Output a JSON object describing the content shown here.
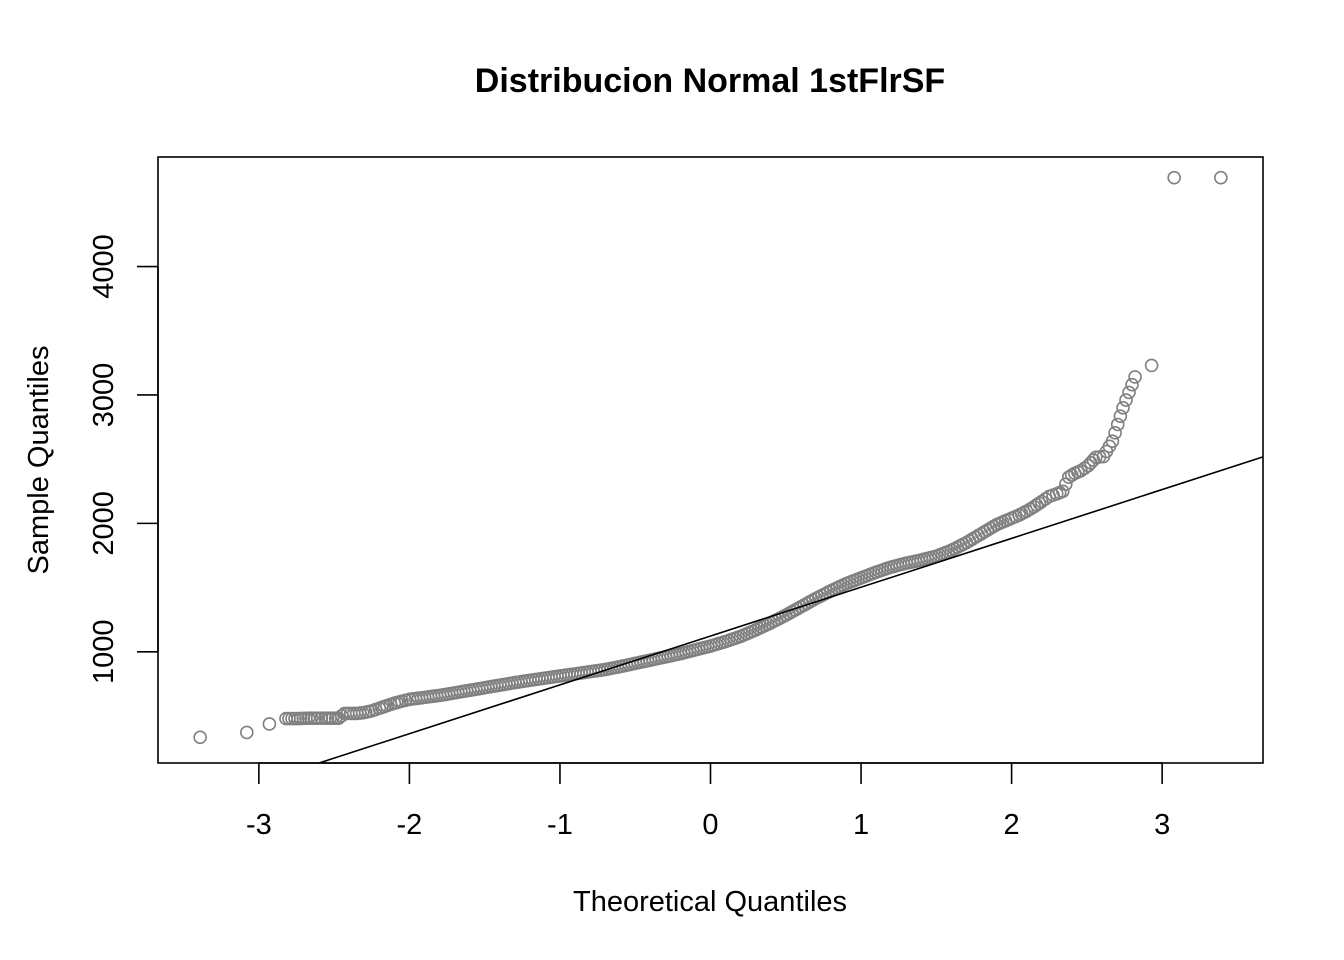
{
  "chart_data": {
    "type": "scatter",
    "title": "Distribucion Normal 1stFlrSF",
    "xlabel": "Theoretical Quantiles",
    "ylabel": "Sample Quantiles",
    "xlim": [
      -3.67,
      3.67
    ],
    "ylim": [
      134,
      4853
    ],
    "x_ticks": [
      -3,
      -2,
      -1,
      0,
      1,
      2,
      3
    ],
    "x_tick_labels": [
      "-3",
      "-2",
      "-1",
      "0",
      "1",
      "2",
      "3"
    ],
    "y_ticks": [
      1000,
      2000,
      3000,
      4000
    ],
    "y_tick_labels": [
      "1000",
      "2000",
      "3000",
      "4000"
    ],
    "grid": false,
    "legend": "none",
    "point_color": "#808080",
    "line_color": "#000000",
    "reference_line": {
      "x": [
        -2.6,
        3.67
      ],
      "y": [
        134,
        2518
      ]
    },
    "series": [
      {
        "x": [
          -3.39,
          -3.08,
          -2.93,
          -2.82,
          -2.74,
          -2.67,
          -2.61,
          -2.56,
          -2.51,
          -2.47,
          -2.43,
          -2.39,
          -2.35,
          -2.31,
          -2.25,
          -2.2,
          -2.15,
          -2.1,
          -2.05,
          -2.0,
          -1.9,
          -1.8,
          -1.7,
          -1.6,
          -1.5,
          -1.4,
          -1.3,
          -1.2,
          -1.1,
          -1.0,
          -0.9,
          -0.8,
          -0.7,
          -0.6,
          -0.5,
          -0.4,
          -0.3,
          -0.2,
          -0.1,
          0.0,
          0.1,
          0.2,
          0.3,
          0.4,
          0.5,
          0.6,
          0.7,
          0.8,
          0.9,
          1.0,
          1.1,
          1.2,
          1.3,
          1.4,
          1.5,
          1.6,
          1.7,
          1.8,
          1.9,
          2.0,
          2.05,
          2.1,
          2.15,
          2.2,
          2.25,
          2.3,
          2.34,
          2.38,
          2.42,
          2.46,
          2.51,
          2.56,
          2.61,
          2.67,
          2.74,
          2.82,
          2.93,
          3.08,
          3.39
        ],
        "y": [
          334,
          372,
          438,
          480,
          480,
          483,
          483,
          483,
          483,
          483,
          520,
          520,
          520,
          525,
          540,
          560,
          580,
          600,
          615,
          630,
          645,
          660,
          680,
          700,
          720,
          740,
          760,
          778,
          795,
          812,
          828,
          845,
          862,
          885,
          910,
          935,
          960,
          985,
          1015,
          1045,
          1080,
          1120,
          1170,
          1225,
          1285,
          1350,
          1415,
          1475,
          1530,
          1575,
          1620,
          1660,
          1690,
          1715,
          1745,
          1790,
          1850,
          1920,
          1990,
          2040,
          2065,
          2095,
          2130,
          2170,
          2210,
          2230,
          2250,
          2360,
          2390,
          2410,
          2450,
          2515,
          2520,
          2640,
          2900,
          3140,
          3230,
          4692,
          4692
        ]
      }
    ]
  }
}
